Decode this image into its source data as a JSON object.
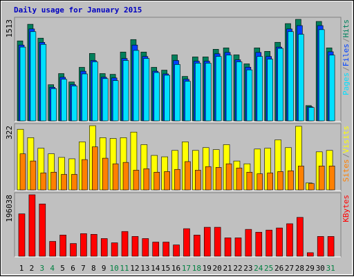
{
  "chart_data": [
    {
      "type": "bar",
      "title": "Daily usage for January 2015",
      "title_color": "#0000c0",
      "categories": [
        "1",
        "2",
        "3",
        "4",
        "5",
        "6",
        "7",
        "8",
        "9",
        "10",
        "11",
        "12",
        "13",
        "14",
        "15",
        "16",
        "17",
        "18",
        "19",
        "20",
        "21",
        "22",
        "23",
        "24",
        "25",
        "26",
        "27",
        "28",
        "29",
        "30",
        "31"
      ],
      "category_colors": [
        "#000000",
        "#000000",
        "#008040",
        "#008040",
        "#000000",
        "#000000",
        "#000000",
        "#000000",
        "#000000",
        "#008040",
        "#008040",
        "#000000",
        "#000000",
        "#000000",
        "#000000",
        "#000000",
        "#008040",
        "#008040",
        "#000000",
        "#000000",
        "#000000",
        "#000000",
        "#000000",
        "#008040",
        "#008040",
        "#000000",
        "#000000",
        "#000000",
        "#000000",
        "#000000",
        "#008040"
      ],
      "legend_separator": "/",
      "ylim": [
        0,
        1513
      ],
      "yticks": [
        1513
      ],
      "series": [
        {
          "name": "Hits",
          "color": "#00805c",
          "values": [
            1192,
            1440,
            1233,
            539,
            705,
            580,
            798,
            1005,
            705,
            694,
            1026,
            1212,
            1026,
            798,
            756,
            984,
            663,
            953,
            953,
            1067,
            1088,
            984,
            850,
            1088,
            1036,
            1171,
            1450,
            1513,
            228,
            1482,
            1088
          ]
        },
        {
          "name": "Files",
          "color": "#0040ff",
          "values": [
            1130,
            1370,
            1170,
            500,
            650,
            540,
            740,
            900,
            650,
            640,
            930,
            1130,
            960,
            740,
            700,
            900,
            620,
            890,
            890,
            1000,
            1020,
            910,
            800,
            1020,
            960,
            1100,
            1370,
            1420,
            210,
            1420,
            1030
          ]
        },
        {
          "name": "Pages",
          "color": "#00e0ff",
          "values": [
            1100,
            1330,
            1140,
            480,
            620,
            520,
            700,
            880,
            630,
            600,
            900,
            1050,
            930,
            720,
            680,
            840,
            590,
            860,
            860,
            960,
            980,
            880,
            760,
            960,
            920,
            1080,
            1330,
            1290,
            200,
            1360,
            980
          ]
        }
      ]
    },
    {
      "type": "bar",
      "ylim": [
        0,
        322
      ],
      "yticks": [
        322
      ],
      "series": [
        {
          "name": "Visits",
          "color": "#ffff00",
          "values": [
            304,
            262,
            209,
            181,
            163,
            156,
            241,
            322,
            262,
            258,
            262,
            290,
            227,
            173,
            166,
            198,
            241,
            198,
            212,
            202,
            227,
            145,
            131,
            205,
            209,
            251,
            212,
            319,
            35,
            191,
            198
          ]
        },
        {
          "name": "Sites",
          "color": "#ff8000",
          "values": [
            181,
            145,
            85,
            89,
            78,
            78,
            152,
            216,
            159,
            131,
            138,
            99,
            106,
            89,
            92,
            103,
            142,
            99,
            117,
            113,
            131,
            110,
            89,
            81,
            85,
            92,
            96,
            120,
            32,
            120,
            120
          ]
        }
      ]
    },
    {
      "type": "bar",
      "ylim": [
        0,
        196038
      ],
      "yticks": [
        196038
      ],
      "series": [
        {
          "name": "KBytes",
          "color": "#ff0000",
          "values": [
            135180,
            196038,
            166722,
            47313,
            67590,
            40554,
            72096,
            69843,
            56325,
            42807,
            78855,
            63084,
            56325,
            45060,
            45060,
            36048,
            87867,
            67590,
            92373,
            92373,
            58578,
            58578,
            85614,
            76602,
            83361,
            90120,
            103638,
            123915,
            11265,
            63084,
            63084
          ]
        }
      ]
    }
  ]
}
